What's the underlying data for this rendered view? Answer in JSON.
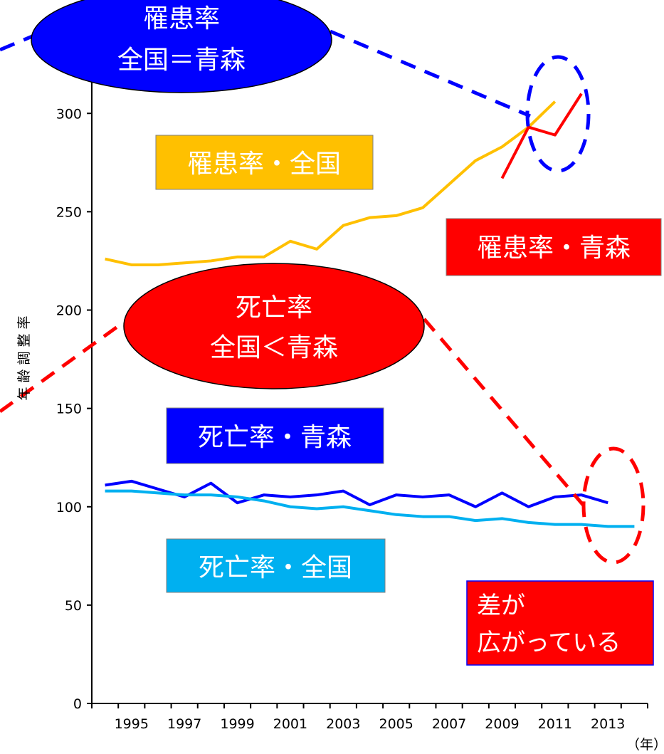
{
  "chart_data": {
    "type": "line",
    "title": "",
    "xlabel": "（年）",
    "ylabel": "年齢調整率",
    "x": [
      1994,
      1995,
      1996,
      1997,
      1998,
      1999,
      2000,
      2001,
      2002,
      2003,
      2004,
      2005,
      2006,
      2007,
      2008,
      2009,
      2010,
      2011,
      2012,
      2013,
      2014
    ],
    "x_tick_labels": [
      "1995",
      "1997",
      "1999",
      "2001",
      "2003",
      "2005",
      "2007",
      "2009",
      "2011",
      "2013"
    ],
    "xlim": [
      1994,
      2015
    ],
    "ylim": [
      0,
      320
    ],
    "y_ticks": [
      0,
      50,
      100,
      150,
      200,
      250,
      300
    ],
    "series": [
      {
        "name": "罹患率・全国",
        "color": "#FFC000",
        "values": [
          226,
          223,
          223,
          224,
          225,
          227,
          227,
          235,
          231,
          243,
          247,
          248,
          252,
          264,
          276,
          283,
          293,
          306,
          null,
          null,
          null
        ]
      },
      {
        "name": "罹患率・青森",
        "color": "#FF0000",
        "values": [
          null,
          null,
          null,
          null,
          null,
          null,
          null,
          null,
          null,
          null,
          null,
          null,
          null,
          null,
          null,
          267,
          293,
          289,
          310,
          null,
          null
        ]
      },
      {
        "name": "死亡率・青森",
        "color": "#0000FF",
        "values": [
          111,
          113,
          109,
          105,
          112,
          102,
          106,
          105,
          106,
          108,
          101,
          106,
          105,
          106,
          100,
          107,
          100,
          105,
          106,
          102,
          null
        ]
      },
      {
        "name": "死亡率・全国",
        "color": "#00B0F0",
        "values": [
          108,
          108,
          107,
          106,
          106,
          105,
          103,
          100,
          99,
          100,
          98,
          96,
          95,
          95,
          93,
          94,
          92,
          91,
          91,
          90,
          90
        ]
      }
    ],
    "annotations": [
      {
        "id": "bubble_blue",
        "lines": [
          "罹患率",
          "全国＝青森"
        ],
        "color": "#0000FF"
      },
      {
        "id": "bubble_red",
        "lines": [
          "死亡率",
          "全国＜青森"
        ],
        "color": "#FF0000"
      },
      {
        "id": "note_gap",
        "lines": [
          "差が",
          "広がっている"
        ],
        "color": "#FF0000"
      }
    ]
  }
}
